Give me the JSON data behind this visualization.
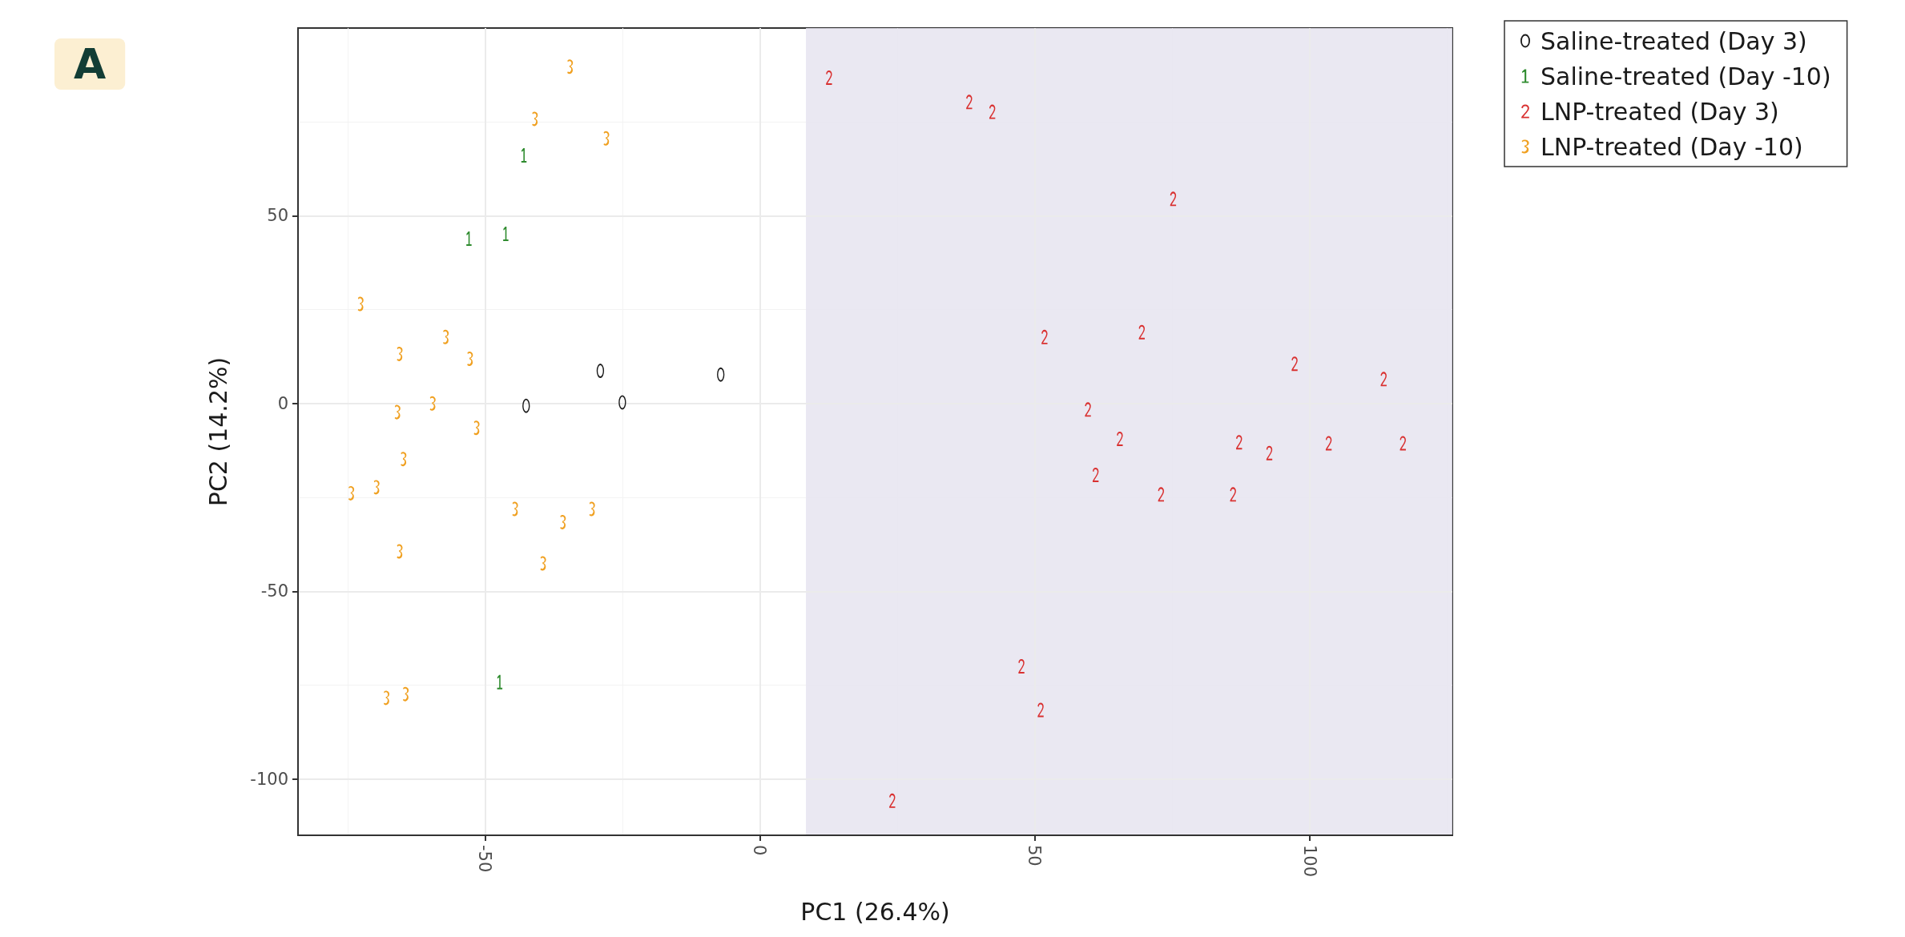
{
  "chart_data": {
    "type": "scatter",
    "xlabel": "PC1 (26.4%)",
    "ylabel": "PC2 (14.2%)",
    "xlim": [
      -84,
      126
    ],
    "ylim": [
      -115,
      100
    ],
    "xticks": [
      -50,
      0,
      50,
      100
    ],
    "yticks": [
      -100,
      -50,
      0,
      50
    ],
    "grid": true,
    "legend": "top right",
    "annotations": [
      "A"
    ],
    "bands": [
      {
        "axis": "x",
        "from": 8.4,
        "to": 126,
        "color": "#e6e4f0"
      }
    ],
    "series": [
      {
        "name": "Saline-treated (Day 3)",
        "color": "#1a1a1a",
        "x": [
          -29,
          -7.1,
          -42.5,
          -25
        ],
        "values": [
          8.7,
          7.7,
          -0.6,
          0.3
        ]
      },
      {
        "name": "Saline-treated (Day -10)",
        "color": "#2e8b2e",
        "x": [
          -42.9,
          -52.9,
          -46.2,
          -47.3
        ],
        "values": [
          66.1,
          43.9,
          45.2,
          -74.2
        ]
      },
      {
        "name": "LNP-treated (Day 3)",
        "color": "#d93030",
        "x": [
          12.6,
          38.1,
          42.3,
          75.2,
          51.8,
          69.5,
          97.3,
          113.5,
          59.7,
          65.5,
          87.2,
          92.7,
          103.5,
          117,
          61.1,
          73,
          86.1,
          47.6,
          51.1,
          24.1
        ],
        "values": [
          86.8,
          80.3,
          77.7,
          54.5,
          17.7,
          19,
          10.6,
          6.5,
          -1.6,
          -9.4,
          -10.3,
          -13.2,
          -10.6,
          -10.6,
          -19,
          -24.2,
          -24.2,
          -70,
          -81.6,
          -105.8
        ]
      },
      {
        "name": "LNP-treated (Day -10)",
        "color": "#f0a020",
        "x": [
          -34.5,
          -40.9,
          -27.9,
          -72.6,
          -65.5,
          -57.1,
          -52.7,
          -65.9,
          -59.5,
          -51.5,
          -64.8,
          -74.3,
          -69.7,
          -44.5,
          -35.8,
          -30.5,
          -65.5,
          -39.4,
          -67.9,
          -64.4
        ],
        "values": [
          89.7,
          75.8,
          70.6,
          26.5,
          13.2,
          17.7,
          11.9,
          -2.3,
          0,
          -6.5,
          -14.8,
          -23.9,
          -22.3,
          -28.1,
          -31.6,
          -28.1,
          -39.4,
          -42.6,
          -78.4,
          -77.4
        ]
      }
    ]
  }
}
